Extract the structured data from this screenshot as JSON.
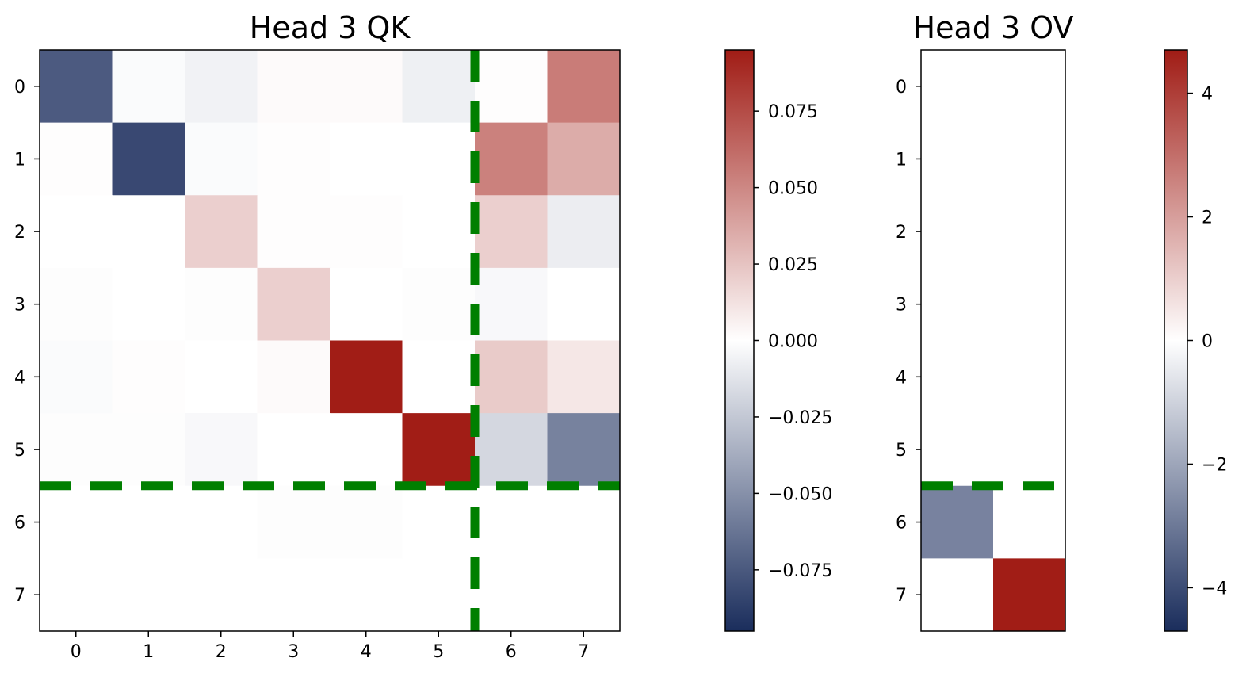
{
  "chart_data": [
    {
      "type": "heatmap",
      "title": "Head 3 QK",
      "x_ticks": [
        "0",
        "1",
        "2",
        "3",
        "4",
        "5",
        "6",
        "7"
      ],
      "y_ticks": [
        "0",
        "1",
        "2",
        "3",
        "4",
        "5",
        "6",
        "7"
      ],
      "values": [
        [
          -0.075,
          -0.002,
          -0.006,
          0.002,
          0.002,
          -0.007,
          0.001,
          0.055
        ],
        [
          0.001,
          -0.083,
          -0.002,
          0.001,
          0.0,
          0.0,
          0.053,
          0.035
        ],
        [
          0.0,
          0.0,
          0.02,
          0.001,
          0.001,
          0.0,
          0.02,
          -0.008
        ],
        [
          -0.001,
          0.0,
          -0.001,
          0.02,
          0.0,
          -0.001,
          -0.003,
          0.0
        ],
        [
          -0.002,
          0.001,
          0.0,
          0.002,
          0.095,
          0.0,
          0.022,
          0.01
        ],
        [
          -0.001,
          -0.001,
          -0.003,
          0.0,
          0.0,
          0.095,
          -0.018,
          -0.057
        ],
        [
          0.0,
          0.0,
          0.0,
          -0.001,
          -0.001,
          0.0,
          0.0,
          0.0
        ],
        [
          0.0,
          0.0,
          0.0,
          0.0,
          0.0,
          0.0,
          0.0,
          0.0
        ]
      ],
      "vmin": -0.095,
      "vmax": 0.095,
      "divider_after_row": 5,
      "divider_after_col": 5,
      "colorbar": {
        "ticks": [
          0.075,
          0.05,
          0.025,
          0.0,
          -0.025,
          -0.05,
          -0.075
        ],
        "tick_labels": [
          "0.075",
          "0.050",
          "0.025",
          "0.000",
          "−0.025",
          "−0.050",
          "−0.075"
        ]
      }
    },
    {
      "type": "heatmap",
      "title": "Head 3 OV",
      "x_ticks": [],
      "y_ticks": [
        "0",
        "1",
        "2",
        "3",
        "4",
        "5",
        "6",
        "7"
      ],
      "values": [
        [
          0,
          0
        ],
        [
          0,
          0
        ],
        [
          0,
          0
        ],
        [
          0,
          0
        ],
        [
          0,
          0
        ],
        [
          0,
          0
        ],
        [
          -2.8,
          0
        ],
        [
          0,
          4.7
        ]
      ],
      "vmin": -4.7,
      "vmax": 4.7,
      "divider_after_row": 5,
      "colorbar": {
        "ticks": [
          4,
          2,
          0,
          -2,
          -4
        ],
        "tick_labels": [
          "4",
          "2",
          "0",
          "−2",
          "−4"
        ]
      }
    }
  ],
  "colors": {
    "neg": "#1c2e5e",
    "mid": "#ffffff",
    "pos": "#a11d16",
    "divider": "#007f00"
  }
}
